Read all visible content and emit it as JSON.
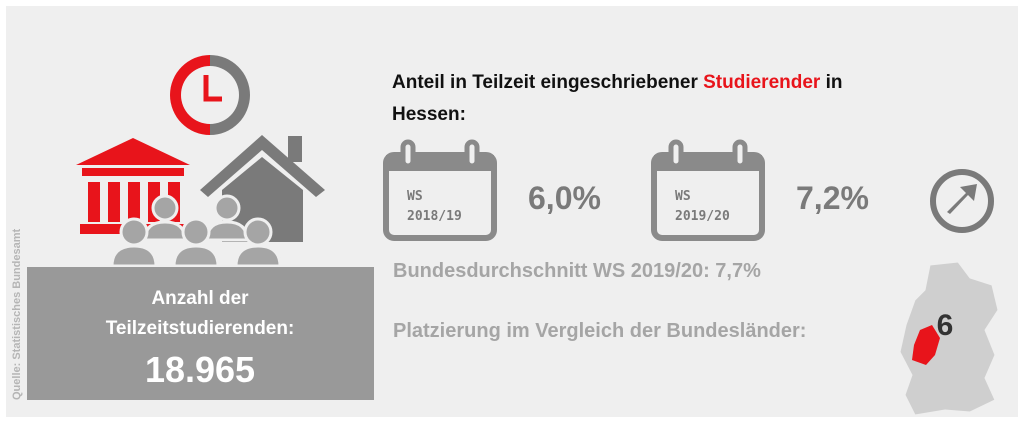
{
  "title": {
    "before": "Anteil in Teilzeit eingeschriebener ",
    "highlight": "Studierender",
    "after": " in",
    "line2": "Hessen:"
  },
  "semesters": [
    {
      "label": "WS",
      "year": "2018/19",
      "value": "6,0%"
    },
    {
      "label": "WS",
      "year": "2019/20",
      "value": "7,2%"
    }
  ],
  "average": "Bundesdurchschnitt WS 2019/20: 7,7%",
  "ranking": {
    "label": "Platzierung im Vergleich der Bundesländer:",
    "value": "6"
  },
  "count": {
    "line1": "Anzahl der",
    "line2": "Teilzeitstudierenden:",
    "value": "18.965"
  },
  "source": "Quelle: Statistisches Bundesamt"
}
